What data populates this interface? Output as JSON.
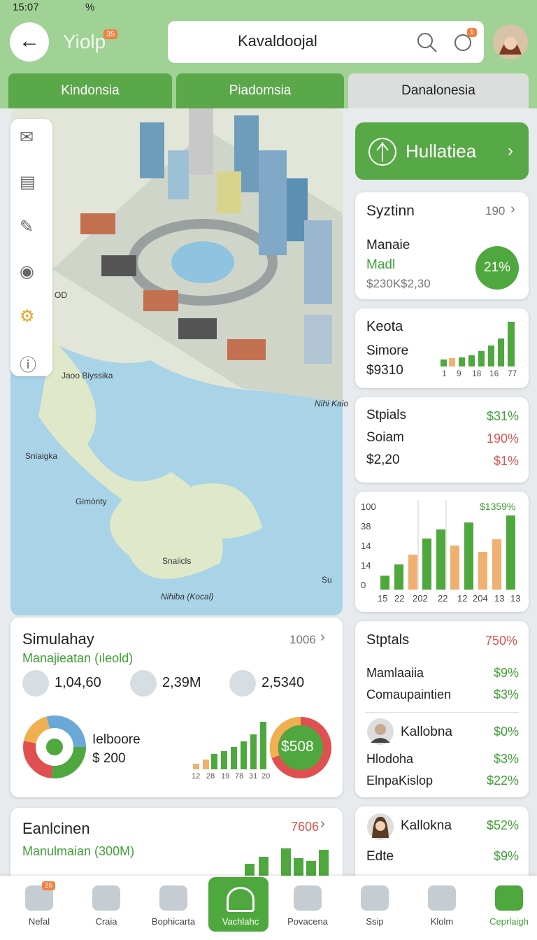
{
  "status": {
    "time": "15:07",
    "signal": "%"
  },
  "header": {
    "brand": "Yiolp",
    "brand_badge": "35",
    "search": "Kavaldoojal",
    "bell_badge": "1"
  },
  "tabs": [
    "Kindonsia",
    "Piadomsia",
    "Danalonesia"
  ],
  "map": {
    "labels": [
      "OD",
      "Jaoo Biyssika",
      "Nihi Kaio",
      "Sniaigka",
      "Gimònty",
      "Snaiicls",
      "Nihiba (Kocal)",
      "Su"
    ]
  },
  "action": {
    "label": "Hullatiea"
  },
  "card_syztinn": {
    "title": "Syztinn",
    "meta": "190",
    "lines": [
      "Manaie",
      "Madl",
      "$230K$2,30"
    ],
    "badge": "21%"
  },
  "card_keota": {
    "title": "Keota",
    "lines": [
      "Simore",
      "$9310"
    ],
    "axis": [
      "1",
      "9",
      "18",
      "16",
      "77"
    ]
  },
  "card_stpials": {
    "rows": [
      [
        "Stpials",
        "$31%"
      ],
      [
        "Soiam",
        "190%"
      ],
      [
        "$2,20",
        "$1%"
      ]
    ]
  },
  "card_chart": {
    "top": "$1359%",
    "yticks": [
      "100",
      "38",
      "14",
      "14",
      "0"
    ],
    "xlabels": [
      "15",
      "22",
      "202",
      "22",
      "12",
      "204",
      "13",
      "13"
    ]
  },
  "card_stptals": {
    "title": "Stptals",
    "value": "750%",
    "rows": [
      [
        "Mamlaaiia",
        "$9%"
      ],
      [
        "Comaupaintien",
        "$3%"
      ]
    ],
    "person": [
      "Kallobna",
      "$0%"
    ],
    "rows2": [
      [
        "Hlodoha",
        "$3%"
      ],
      [
        "ElnpaKislop",
        "$22%"
      ]
    ]
  },
  "card_kallokna": {
    "rows": [
      [
        "Kallokna",
        "$52%"
      ],
      [
        "Edte",
        "$9%"
      ]
    ]
  },
  "sim": {
    "title": "Simulahay",
    "meta": "1006",
    "subtitle": "Manajieatan (ıleold)",
    "stats": [
      "1,04,60",
      "2,39M",
      "2,5340"
    ],
    "donut_label": "Ielboore",
    "donut_value": "$ 200",
    "bar_labels": [
      "12",
      "28",
      "19",
      "78",
      "31",
      "20"
    ],
    "ring": "$508"
  },
  "card_eanl": {
    "title": "Eanlcinen",
    "meta": "7606",
    "subtitle": "Manulmaian (300M)"
  },
  "nav": {
    "items": [
      "Nefal",
      "Craia",
      "Bophicarta",
      "Vachlahc",
      "Povacena",
      "Ssip",
      "Klolm",
      "Ceprlaigh"
    ],
    "badge": "26"
  }
}
